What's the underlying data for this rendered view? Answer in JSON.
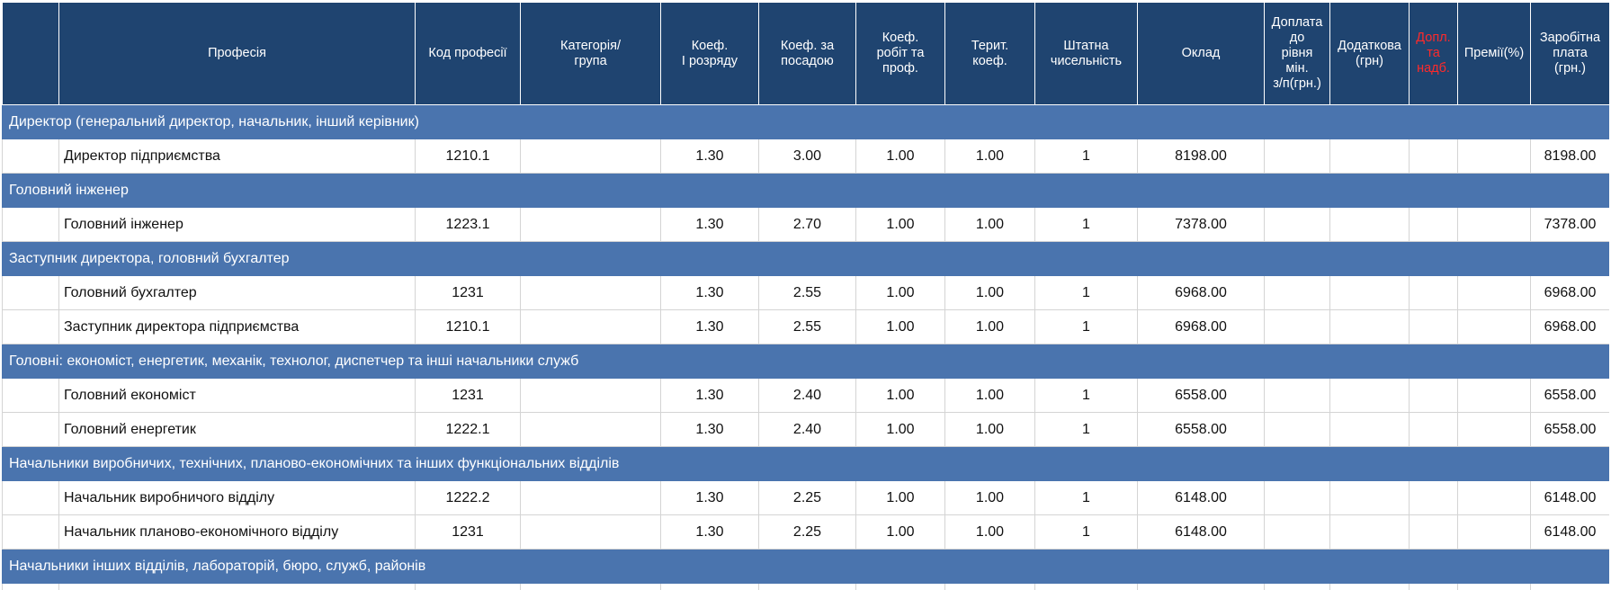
{
  "table": {
    "header": [
      "Професія",
      "Код професії",
      "Категорія/\nгрупа",
      "Коеф.\nІ розряду",
      "Коеф. за\nпосадою",
      "Коеф.\nробіт та\nпроф.",
      "Терит.\nкоеф.",
      "Штатна\nчисельність",
      "Оклад",
      "Доплата\nдо\nрівня\nмін.\nз/п(грн.)",
      "Додаткова\n(грн)",
      "Допл.\nта\nнадб.",
      "Премії(%)",
      "Заробітна\nплата\n(грн.)"
    ],
    "rows": [
      {
        "group": "Директор (генеральний директор, начальник, інший керівник)"
      },
      {
        "profession": "Директор підприємства",
        "code": "1210.1",
        "coef1": "1.30",
        "coef_position": "3.00",
        "coef_work": "1.00",
        "terr_coef": "1.00",
        "staff": "1",
        "salary": "8198.00",
        "pay": "8198.00"
      },
      {
        "group": "Головний інженер"
      },
      {
        "profession": "Головний інженер",
        "code": "1223.1",
        "coef1": "1.30",
        "coef_position": "2.70",
        "coef_work": "1.00",
        "terr_coef": "1.00",
        "staff": "1",
        "salary": "7378.00",
        "pay": "7378.00"
      },
      {
        "group": "Заступник директора, головний бухгалтер"
      },
      {
        "profession": "Головний бухгалтер",
        "code": "1231",
        "coef1": "1.30",
        "coef_position": "2.55",
        "coef_work": "1.00",
        "terr_coef": "1.00",
        "staff": "1",
        "salary": "6968.00",
        "pay": "6968.00"
      },
      {
        "profession": "Заступник директора підприємства",
        "code": "1210.1",
        "coef1": "1.30",
        "coef_position": "2.55",
        "coef_work": "1.00",
        "terr_coef": "1.00",
        "staff": "1",
        "salary": "6968.00",
        "pay": "6968.00"
      },
      {
        "group": "Головні: економіст, енергетик, механік, технолог, диспетчер та інші начальники служб"
      },
      {
        "profession": "Головний економіст",
        "code": "1231",
        "coef1": "1.30",
        "coef_position": "2.40",
        "coef_work": "1.00",
        "terr_coef": "1.00",
        "staff": "1",
        "salary": "6558.00",
        "pay": "6558.00"
      },
      {
        "profession": "Головний енергетик",
        "code": "1222.1",
        "coef1": "1.30",
        "coef_position": "2.40",
        "coef_work": "1.00",
        "terr_coef": "1.00",
        "staff": "1",
        "salary": "6558.00",
        "pay": "6558.00"
      },
      {
        "group": "Начальники виробничих, технічних, планово-економічних та інших функціональних відділів"
      },
      {
        "profession": "Начальник виробничого відділу",
        "code": "1222.2",
        "coef1": "1.30",
        "coef_position": "2.25",
        "coef_work": "1.00",
        "terr_coef": "1.00",
        "staff": "1",
        "salary": "6148.00",
        "pay": "6148.00"
      },
      {
        "profession": "Начальник планово-економічного відділу",
        "code": "1231",
        "coef1": "1.30",
        "coef_position": "2.25",
        "coef_work": "1.00",
        "terr_coef": "1.00",
        "staff": "1",
        "salary": "6148.00",
        "pay": "6148.00"
      },
      {
        "group": "Начальники інших відділів, лабораторій, бюро, служб, районів"
      }
    ]
  }
}
